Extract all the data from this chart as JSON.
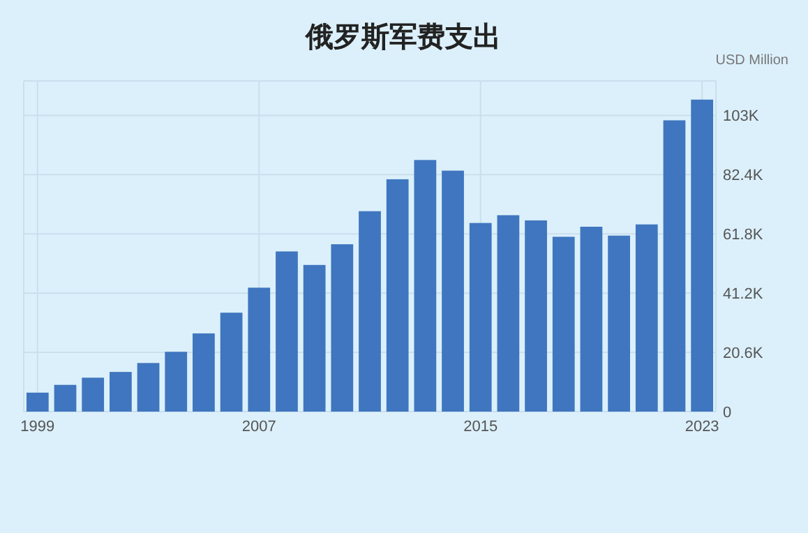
{
  "chart_data": {
    "type": "bar",
    "title": "俄罗斯军费支出",
    "ylabel": "USD Million",
    "categories": [
      "1999",
      null,
      null,
      null,
      null,
      null,
      null,
      null,
      "2007",
      null,
      null,
      null,
      null,
      null,
      null,
      null,
      "2015",
      null,
      null,
      null,
      null,
      null,
      null,
      null,
      "2023"
    ],
    "values": [
      6.6,
      9.3,
      11.8,
      13.8,
      16.9,
      20.8,
      27.2,
      34.4,
      43.1,
      55.7,
      51.0,
      58.2,
      69.7,
      80.8,
      87.5,
      83.8,
      65.6,
      68.3,
      66.5,
      60.8,
      64.3,
      61.2,
      65.1,
      101.3,
      108.5
    ],
    "color": "#3f76bf",
    "ylim": [
      0,
      115
    ],
    "yticks": [
      0,
      {
        "value": 20.6,
        "label": "20.6K"
      },
      {
        "value": 41.2,
        "label": "41.2K"
      },
      {
        "value": 61.8,
        "label": "61.8K"
      },
      {
        "value": 82.4,
        "label": "82.4K"
      },
      {
        "value": 103,
        "label": "103K"
      }
    ],
    "grid": true
  }
}
